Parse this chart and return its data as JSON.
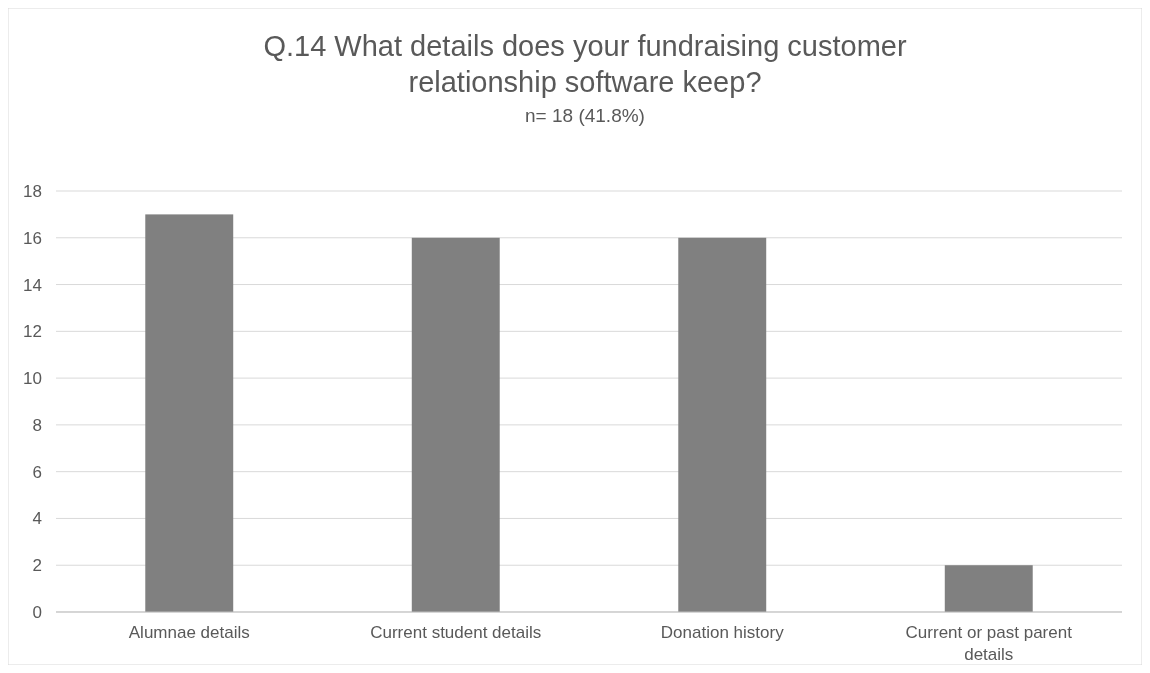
{
  "chart_data": {
    "type": "bar",
    "title": "Q.14 What details does your fundraising customer relationship software keep?",
    "subtitle": "n= 18 (41.8%)",
    "categories": [
      "Alumnae details",
      "Current student details",
      "Donation history",
      "Current or past parent details"
    ],
    "values": [
      17,
      16,
      16,
      2
    ],
    "color": "#808080",
    "ylim": [
      0,
      18
    ],
    "yticks": [
      0,
      2,
      4,
      6,
      8,
      10,
      12,
      14,
      16,
      18
    ],
    "grid": "y"
  }
}
